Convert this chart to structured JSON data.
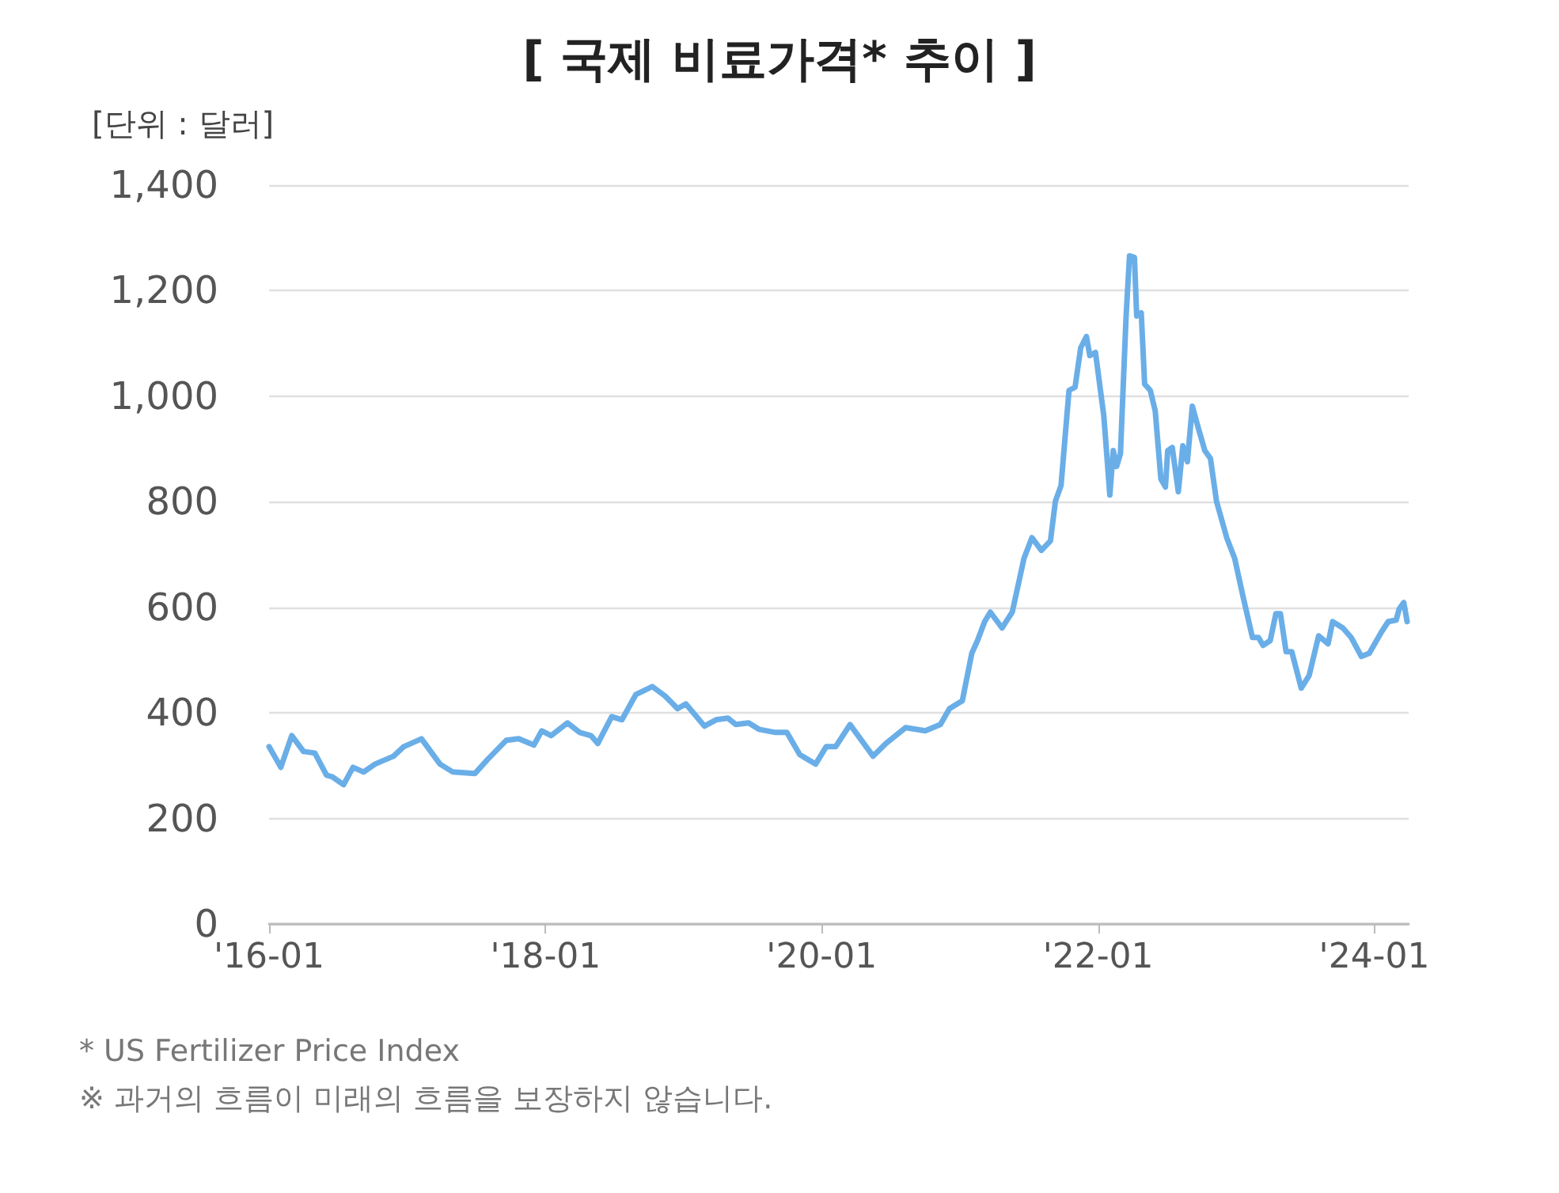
{
  "chart_data": {
    "type": "line",
    "title": "[ 국제 비료가격* 추이 ]",
    "ylabel": "[단위 : 달러]",
    "annotations": [
      "* US Fertilizer Price Index",
      "※ 과거의 흐름이 미래의 흐름을 보장하지 않습니다."
    ],
    "x": [
      "2016-01-01",
      "2016-02-01",
      "2016-03-01",
      "2016-04-01",
      "2016-05-01",
      "2016-06-01",
      "2016-06-16",
      "2016-07-16",
      "2016-08-10",
      "2016-09-07",
      "2016-10-07",
      "2016-11-25",
      "2016-12-22",
      "2017-02-07",
      "2017-03-28",
      "2017-05-01",
      "2017-06-28",
      "2017-08-01",
      "2017-09-19",
      "2017-10-22",
      "2017-12-01",
      "2017-12-22",
      "2018-01-16",
      "2018-02-28",
      "2018-04-01",
      "2018-05-01",
      "2018-05-19",
      "2018-06-25",
      "2018-07-22",
      "2018-08-28",
      "2018-10-10",
      "2018-11-13",
      "2018-12-16",
      "2019-01-07",
      "2019-02-25",
      "2019-03-28",
      "2019-04-28",
      "2019-05-19",
      "2019-06-22",
      "2019-07-19",
      "2019-09-01",
      "2019-10-01",
      "2019-11-04",
      "2019-12-16",
      "2020-01-13",
      "2020-02-07",
      "2020-03-16",
      "2020-05-16",
      "2020-06-19",
      "2020-08-10",
      "2020-10-01",
      "2020-11-10",
      "2020-12-04",
      "2021-01-07",
      "2021-02-01",
      "2021-02-16",
      "2021-03-07",
      "2021-03-22",
      "2021-04-22",
      "2021-05-19",
      "2021-06-19",
      "2021-07-10",
      "2021-08-04",
      "2021-08-28",
      "2021-09-10",
      "2021-09-25",
      "2021-10-16",
      "2021-11-01",
      "2021-11-16",
      "2021-12-01",
      "2021-12-10",
      "2021-12-25",
      "2022-01-16",
      "2022-02-01",
      "2022-02-10",
      "2022-02-19",
      "2022-03-01",
      "2022-03-16",
      "2022-03-25",
      "2022-04-07",
      "2022-04-13",
      "2022-04-25",
      "2022-05-04",
      "2022-05-19",
      "2022-06-01",
      "2022-06-16",
      "2022-06-28",
      "2022-07-04",
      "2022-07-16",
      "2022-08-01",
      "2022-08-13",
      "2022-08-25",
      "2022-09-07",
      "2022-09-22",
      "2022-10-10",
      "2022-10-25",
      "2022-11-10",
      "2022-12-07",
      "2022-12-28",
      "2023-01-19",
      "2023-02-13",
      "2023-03-01",
      "2023-03-13",
      "2023-04-01",
      "2023-04-16",
      "2023-04-28",
      "2023-05-13",
      "2023-05-28",
      "2023-06-22",
      "2023-07-13",
      "2023-08-07",
      "2023-09-01",
      "2023-09-13",
      "2023-10-10",
      "2023-11-01",
      "2023-11-28",
      "2023-12-19",
      "2024-01-19",
      "2024-02-07",
      "2024-02-28",
      "2024-03-07",
      "2024-03-19",
      "2024-03-28"
    ],
    "series": [
      {
        "color": "#6aaee8",
        "values": [
          336,
          297,
          357,
          327,
          324,
          282,
          279,
          264,
          297,
          288,
          303,
          318,
          336,
          351,
          303,
          288,
          285,
          312,
          348,
          351,
          339,
          366,
          357,
          381,
          363,
          357,
          342,
          393,
          387,
          435,
          450,
          432,
          408,
          417,
          375,
          387,
          390,
          378,
          381,
          369,
          363,
          363,
          321,
          303,
          336,
          336,
          378,
          318,
          342,
          372,
          366,
          378,
          408,
          423,
          513,
          537,
          573,
          591,
          561,
          591,
          693,
          732,
          708,
          726,
          801,
          831,
          1011,
          1017,
          1092,
          1113,
          1077,
          1083,
          963,
          813,
          897,
          867,
          891,
          1152,
          1266,
          1263,
          1152,
          1158,
          1023,
          1011,
          972,
          843,
          828,
          897,
          903,
          819,
          906,
          876,
          981,
          942,
          897,
          882,
          801,
          732,
          693,
          621,
          543,
          543,
          528,
          537,
          588,
          588,
          516,
          516,
          447,
          471,
          546,
          531,
          573,
          561,
          543,
          507,
          513,
          552,
          573,
          576,
          597,
          609,
          573
        ]
      }
    ],
    "xlim": [
      "2016-01-01",
      "2024-04-01"
    ],
    "xticks": [
      {
        "value": "2016-01-01",
        "label": "'16-01"
      },
      {
        "value": "2018-01-01",
        "label": "'18-01"
      },
      {
        "value": "2020-01-01",
        "label": "'20-01"
      },
      {
        "value": "2022-01-01",
        "label": "'22-01"
      },
      {
        "value": "2024-01-01",
        "label": "'24-01"
      }
    ],
    "ylim": [
      0,
      1400
    ],
    "yticks": [
      0,
      200,
      400,
      600,
      800,
      {
        "value": 1000,
        "label": "1,000"
      },
      {
        "value": 1200,
        "label": "1,200"
      },
      {
        "value": 1400,
        "label": "1,400"
      }
    ],
    "grid": "y",
    "marker": "none",
    "line_style": "solid"
  }
}
